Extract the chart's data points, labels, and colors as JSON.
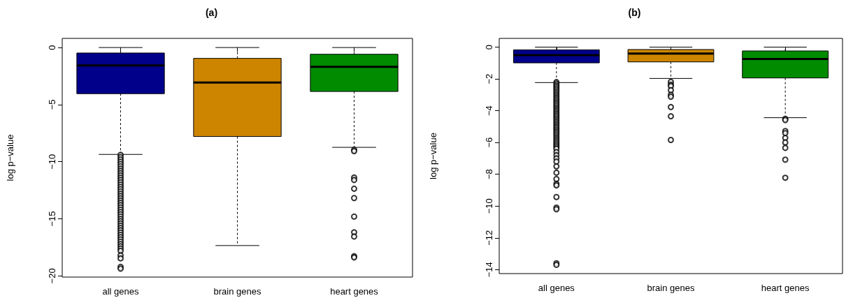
{
  "chart_data": [
    {
      "type": "box",
      "title": "(a)",
      "ylabel": "log p−value",
      "categories": [
        "all genes",
        "brain genes",
        "heart genes"
      ],
      "colors": [
        "#00008b",
        "#cd8500",
        "#008b00"
      ],
      "ylim": [
        -20.1,
        0.8
      ],
      "yticks": [
        -20,
        -15,
        -10,
        -5,
        0
      ],
      "grid": false,
      "marker": "circle",
      "boxes": [
        {
          "low": -9.36,
          "q1": -4.04,
          "median": -1.57,
          "q3": -0.48,
          "high": 0,
          "outliers": [
            -9.4,
            -9.6,
            -9.8,
            -10.0,
            -10.2,
            -10.4,
            -10.6,
            -10.8,
            -11.0,
            -11.2,
            -11.4,
            -11.6,
            -11.8,
            -12.0,
            -12.2,
            -12.4,
            -12.6,
            -12.8,
            -13.0,
            -13.2,
            -13.4,
            -13.6,
            -13.8,
            -14.0,
            -14.2,
            -14.4,
            -14.6,
            -14.8,
            -15.0,
            -15.2,
            -15.4,
            -15.6,
            -15.8,
            -16.0,
            -16.2,
            -16.4,
            -16.6,
            -16.8,
            -17.0,
            -17.2,
            -17.4,
            -17.6,
            -17.8,
            -18.2,
            -18.46,
            -19.2,
            -19.36
          ]
        },
        {
          "low": -17.34,
          "q1": -7.79,
          "median": -3.06,
          "q3": -0.95,
          "high": 0
        },
        {
          "low": -8.74,
          "q1": -3.85,
          "median": -1.69,
          "q3": -0.59,
          "high": 0,
          "outliers": [
            -8.95,
            -9.07,
            -11.38,
            -11.6,
            -12.36,
            -13.18,
            -14.8,
            -16.18,
            -16.55,
            -18.27,
            -18.38
          ]
        }
      ]
    },
    {
      "type": "box",
      "title": "(b)",
      "ylabel": "log p−value",
      "categories": [
        "all genes",
        "brain genes",
        "heart genes"
      ],
      "colors": [
        "#00008b",
        "#cd8500",
        "#008b00"
      ],
      "ylim": [
        -14.25,
        0.55
      ],
      "yticks": [
        -14,
        -12,
        -10,
        -8,
        -6,
        -4,
        -2,
        0
      ],
      "grid": false,
      "marker": "circle",
      "boxes": [
        {
          "low": -2.23,
          "q1": -0.99,
          "median": -0.5,
          "q3": -0.17,
          "high": 0,
          "outliers": [
            -2.2,
            -2.3,
            -2.4,
            -2.5,
            -2.6,
            -2.7,
            -2.8,
            -2.9,
            -3.0,
            -3.1,
            -3.2,
            -3.3,
            -3.4,
            -3.5,
            -3.6,
            -3.7,
            -3.8,
            -3.9,
            -4.0,
            -4.1,
            -4.2,
            -4.3,
            -4.4,
            -4.5,
            -4.6,
            -4.7,
            -4.8,
            -4.9,
            -5.0,
            -5.1,
            -5.2,
            -5.3,
            -5.4,
            -5.5,
            -5.6,
            -5.7,
            -5.8,
            -5.9,
            -6.0,
            -6.1,
            -6.2,
            -6.3,
            -6.4,
            -6.6,
            -6.8,
            -7.0,
            -7.2,
            -7.5,
            -7.9,
            -8.3,
            -8.6,
            -8.7,
            -9.43,
            -10.1,
            -10.2,
            -13.6,
            -13.7
          ]
        },
        {
          "low": -1.97,
          "q1": -0.93,
          "median": -0.41,
          "q3": -0.15,
          "high": 0,
          "outliers": [
            -2.18,
            -2.36,
            -2.45,
            -2.71,
            -3.0,
            -3.12,
            -3.77,
            -4.35,
            -5.84
          ]
        },
        {
          "low": -4.44,
          "q1": -1.94,
          "median": -0.75,
          "q3": -0.24,
          "high": 0,
          "outliers": [
            -4.51,
            -4.59,
            -5.28,
            -5.41,
            -5.71,
            -6.0,
            -6.34,
            -7.08,
            -8.22
          ]
        }
      ]
    }
  ]
}
